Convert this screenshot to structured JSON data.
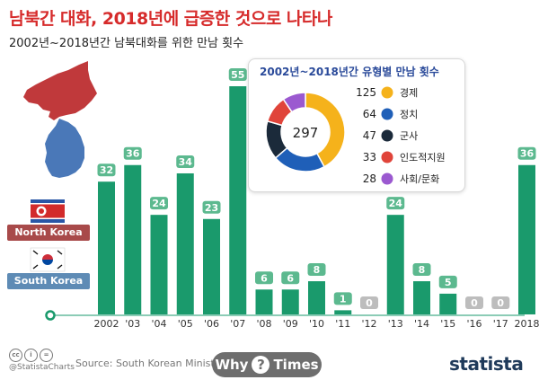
{
  "header": {
    "title": "남북간 대화, 2018년에 급증한 것으로 나타나",
    "subtitle": "2002년~2018년간 남북대화를 위한 만남 횟수"
  },
  "flags": {
    "north_label": "North Korea",
    "south_label": "South Korea"
  },
  "colors": {
    "bar": "#1a9a6c",
    "title": "#d62b2b",
    "value_label_bg": "#5cb98f",
    "zero_label_bg": "#bdbdbd"
  },
  "chart_data": {
    "type": "bar",
    "title": "남북간 대화, 2018년에 급증한 것으로 나타나",
    "subtitle": "2002년~2018년간 남북대화를 위한 만남 횟수",
    "categories": [
      "2002",
      "'03",
      "'04",
      "'05",
      "'06",
      "'07",
      "'08",
      "'09",
      "'10",
      "'11",
      "'12",
      "'13",
      "'14",
      "'15",
      "'16",
      "'17",
      "2018"
    ],
    "values": [
      32,
      36,
      24,
      34,
      23,
      55,
      6,
      6,
      8,
      1,
      0,
      24,
      8,
      5,
      0,
      0,
      36
    ],
    "value_labels": [
      "32",
      "36",
      "24",
      "34",
      "23",
      "55",
      "6",
      "6",
      "8",
      "1",
      "0",
      "24",
      "8",
      "5",
      "0",
      "0",
      "36"
    ],
    "ylim": [
      0,
      55
    ],
    "grid": false,
    "legend": "none"
  },
  "breakdown": {
    "title": "2002년~2018년간 유형별 만남 횟수",
    "total": "297",
    "chart_data": {
      "type": "pie",
      "total": 297,
      "labels": [
        "경제",
        "정치",
        "군사",
        "인도적지원",
        "사회/문화"
      ],
      "values": [
        125,
        64,
        47,
        33,
        28
      ],
      "value_labels": [
        "125",
        "64",
        "47",
        "33",
        "28"
      ],
      "colors": [
        "#f5b21b",
        "#1f5fb8",
        "#1b2a3a",
        "#e0443a",
        "#9b59d0"
      ]
    }
  },
  "footer": {
    "cc_icons": [
      "cc",
      "i",
      "="
    ],
    "handle": "@StatistaCharts",
    "source": "Source: South Korean Ministry of",
    "watermark_left": "Why",
    "watermark_mid": "?",
    "watermark_right": "Times",
    "brand": "statista"
  }
}
